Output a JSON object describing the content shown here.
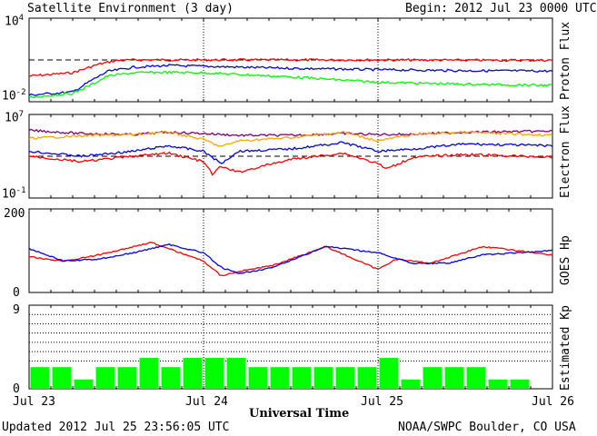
{
  "header": {
    "title": "Satellite Environment (3 day)",
    "begin_label": "Begin:",
    "begin_value": "2012 Jul 23 0000 UTC"
  },
  "footer": {
    "updated": "Updated 2012 Jul 25 23:56:05 UTC",
    "credit": "NOAA/SWPC Boulder, CO USA",
    "xlabel": "Universal Time"
  },
  "x_ticks": [
    "Jul 23",
    "Jul 24",
    "Jul 25",
    "Jul 26"
  ],
  "chart_data": [
    {
      "type": "line",
      "ylabel": "Proton Flux",
      "yscale": "log",
      "ylim": [
        0.01,
        10000
      ],
      "ytick_labels": [
        {
          "base": "10",
          "exp": "4"
        },
        {
          "base": "10",
          "exp": "-2"
        }
      ],
      "xlim_days": [
        0,
        3
      ],
      "threshold": 10,
      "colors": {
        "red": "#ff0000",
        "blue": "#0000ff",
        "green": "#00ff00"
      },
      "series": [
        {
          "color": "#ff0000",
          "x": [
            0,
            0.25,
            0.4,
            0.5,
            0.6,
            1,
            1.5,
            2,
            2.5,
            3
          ],
          "y": [
            0.7,
            1.2,
            5,
            9,
            10,
            10,
            10,
            10,
            9.5,
            9.5
          ]
        },
        {
          "color": "#0000ff",
          "x": [
            0,
            0.25,
            0.35,
            0.45,
            0.6,
            0.8,
            1,
            1.5,
            2,
            2.5,
            3
          ],
          "y": [
            0.03,
            0.05,
            0.3,
            1.5,
            3,
            4,
            3.5,
            2.5,
            2,
            1.7,
            1.6
          ]
        },
        {
          "color": "#00ff00",
          "x": [
            0,
            0.25,
            0.35,
            0.45,
            0.6,
            0.8,
            1,
            1.5,
            2,
            2.5,
            3
          ],
          "y": [
            0.02,
            0.04,
            0.15,
            0.7,
            1.2,
            1.3,
            1.2,
            0.6,
            0.25,
            0.18,
            0.15
          ]
        }
      ]
    },
    {
      "type": "line",
      "ylabel": "Electron Flux",
      "yscale": "log",
      "ylim": [
        0.1,
        10000000
      ],
      "ytick_labels": [
        {
          "base": "10",
          "exp": "7"
        },
        {
          "base": "10",
          "exp": "-1"
        }
      ],
      "xlim_days": [
        0,
        3
      ],
      "threshold": 1000,
      "series": [
        {
          "color": "#800080",
          "x": [
            0,
            0.3,
            0.6,
            0.8,
            1,
            1.2,
            1.5,
            1.8,
            2,
            2.2,
            2.5,
            3
          ],
          "y": [
            300000,
            150000,
            120000,
            200000,
            150000,
            100000,
            100000,
            150000,
            120000,
            130000,
            200000,
            250000
          ]
        },
        {
          "color": "#ffa500",
          "x": [
            0,
            0.3,
            0.6,
            0.8,
            1,
            1.1,
            1.2,
            1.5,
            1.8,
            2,
            2.2,
            2.5,
            3
          ],
          "y": [
            50000,
            90000,
            120000,
            200000,
            40000,
            8000,
            30000,
            60000,
            200000,
            30000,
            120000,
            200000,
            100000
          ]
        },
        {
          "color": "#0000ff",
          "x": [
            0,
            0.3,
            0.6,
            0.8,
            1,
            1.1,
            1.2,
            1.5,
            1.8,
            2,
            2.2,
            2.5,
            3
          ],
          "y": [
            3000,
            1000,
            3000,
            10000,
            3000,
            200,
            3000,
            5000,
            20000,
            3000,
            5000,
            15000,
            10000
          ]
        },
        {
          "color": "#ff0000",
          "x": [
            0,
            0.3,
            0.6,
            0.8,
            1,
            1.05,
            1.1,
            1.2,
            1.5,
            1.8,
            2,
            2.05,
            2.2,
            2.5,
            3
          ],
          "y": [
            1000,
            300,
            1000,
            2000,
            300,
            20,
            100,
            30,
            500,
            2000,
            200,
            60,
            800,
            1500,
            800
          ]
        }
      ]
    },
    {
      "type": "line",
      "ylabel": "GOES Hp",
      "yscale": "linear",
      "ylim": [
        0,
        200
      ],
      "ytick_labels": [
        "200",
        "0"
      ],
      "xlim_days": [
        0,
        3
      ],
      "series": [
        {
          "color": "#ff0000",
          "x": [
            0,
            0.2,
            0.4,
            0.6,
            0.7,
            1,
            1.1,
            1.2,
            1.4,
            1.7,
            2,
            2.1,
            2.3,
            2.6,
            3
          ],
          "y": [
            85,
            75,
            90,
            110,
            120,
            75,
            40,
            50,
            65,
            110,
            55,
            80,
            70,
            110,
            90
          ]
        },
        {
          "color": "#0000ff",
          "x": [
            0,
            0.2,
            0.4,
            0.6,
            0.8,
            1,
            1.1,
            1.2,
            1.4,
            1.7,
            2,
            2.2,
            2.4,
            2.6,
            3
          ],
          "y": [
            105,
            75,
            80,
            95,
            115,
            95,
            60,
            45,
            60,
            110,
            95,
            70,
            70,
            90,
            100
          ]
        }
      ]
    },
    {
      "type": "bar",
      "ylabel": "Estimated Kp",
      "ylim": [
        0,
        9
      ],
      "ytick_labels": [
        "9",
        "0"
      ],
      "color": "#00ff00",
      "gridlines": [
        3,
        4,
        5,
        6,
        7,
        8,
        9
      ],
      "values": [
        2.33,
        2.33,
        1,
        2.33,
        2.33,
        3.33,
        2.33,
        3.33,
        3.33,
        3.33,
        2.33,
        2.33,
        2.33,
        2.33,
        2.33,
        2.33,
        3.33,
        1,
        2.33,
        2.33,
        2.33,
        1,
        1
      ]
    }
  ]
}
